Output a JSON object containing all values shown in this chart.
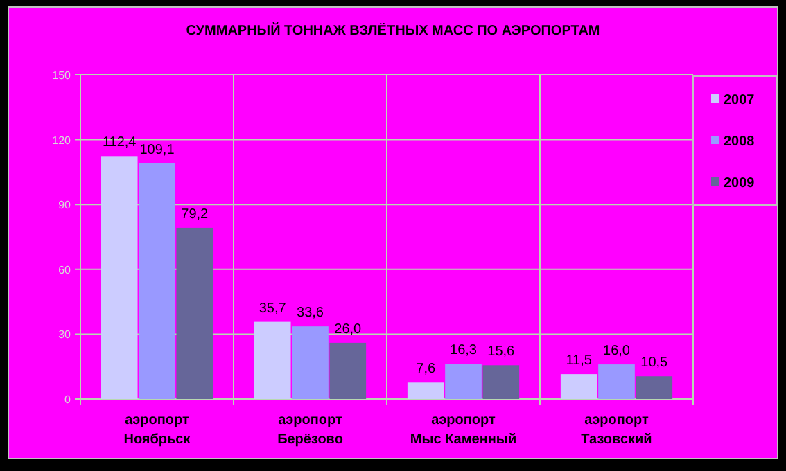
{
  "chart_data": {
    "type": "bar",
    "title": "СУММАРНЫЙ ТОННАЖ ВЗЛЁТНЫХ МАСС ПО АЭРОПОРТАМ",
    "categories": [
      "аэропорт Ноябрьск",
      "аэропорт Берёзово",
      "аэропорт Мыс Каменный",
      "аэропорт Тазовский"
    ],
    "series": [
      {
        "name": "2007",
        "color": "#ccccff",
        "values": [
          112.4,
          35.7,
          7.6,
          11.5
        ],
        "value_labels": [
          "112,4",
          "35,7",
          "7,6",
          "11,5"
        ]
      },
      {
        "name": "2008",
        "color": "#9999ff",
        "values": [
          109.1,
          33.6,
          16.3,
          16.0
        ],
        "value_labels": [
          "109,1",
          "33,6",
          "16,3",
          "16,0"
        ]
      },
      {
        "name": "2009",
        "color": "#666699",
        "values": [
          79.2,
          26.0,
          15.6,
          10.5
        ],
        "value_labels": [
          "79,2",
          "26,0",
          "15,6",
          "10,5"
        ]
      }
    ],
    "ylim": [
      0,
      150
    ],
    "yticks": [
      0,
      30,
      60,
      90,
      120,
      150
    ],
    "grid": true,
    "legend": "right"
  }
}
